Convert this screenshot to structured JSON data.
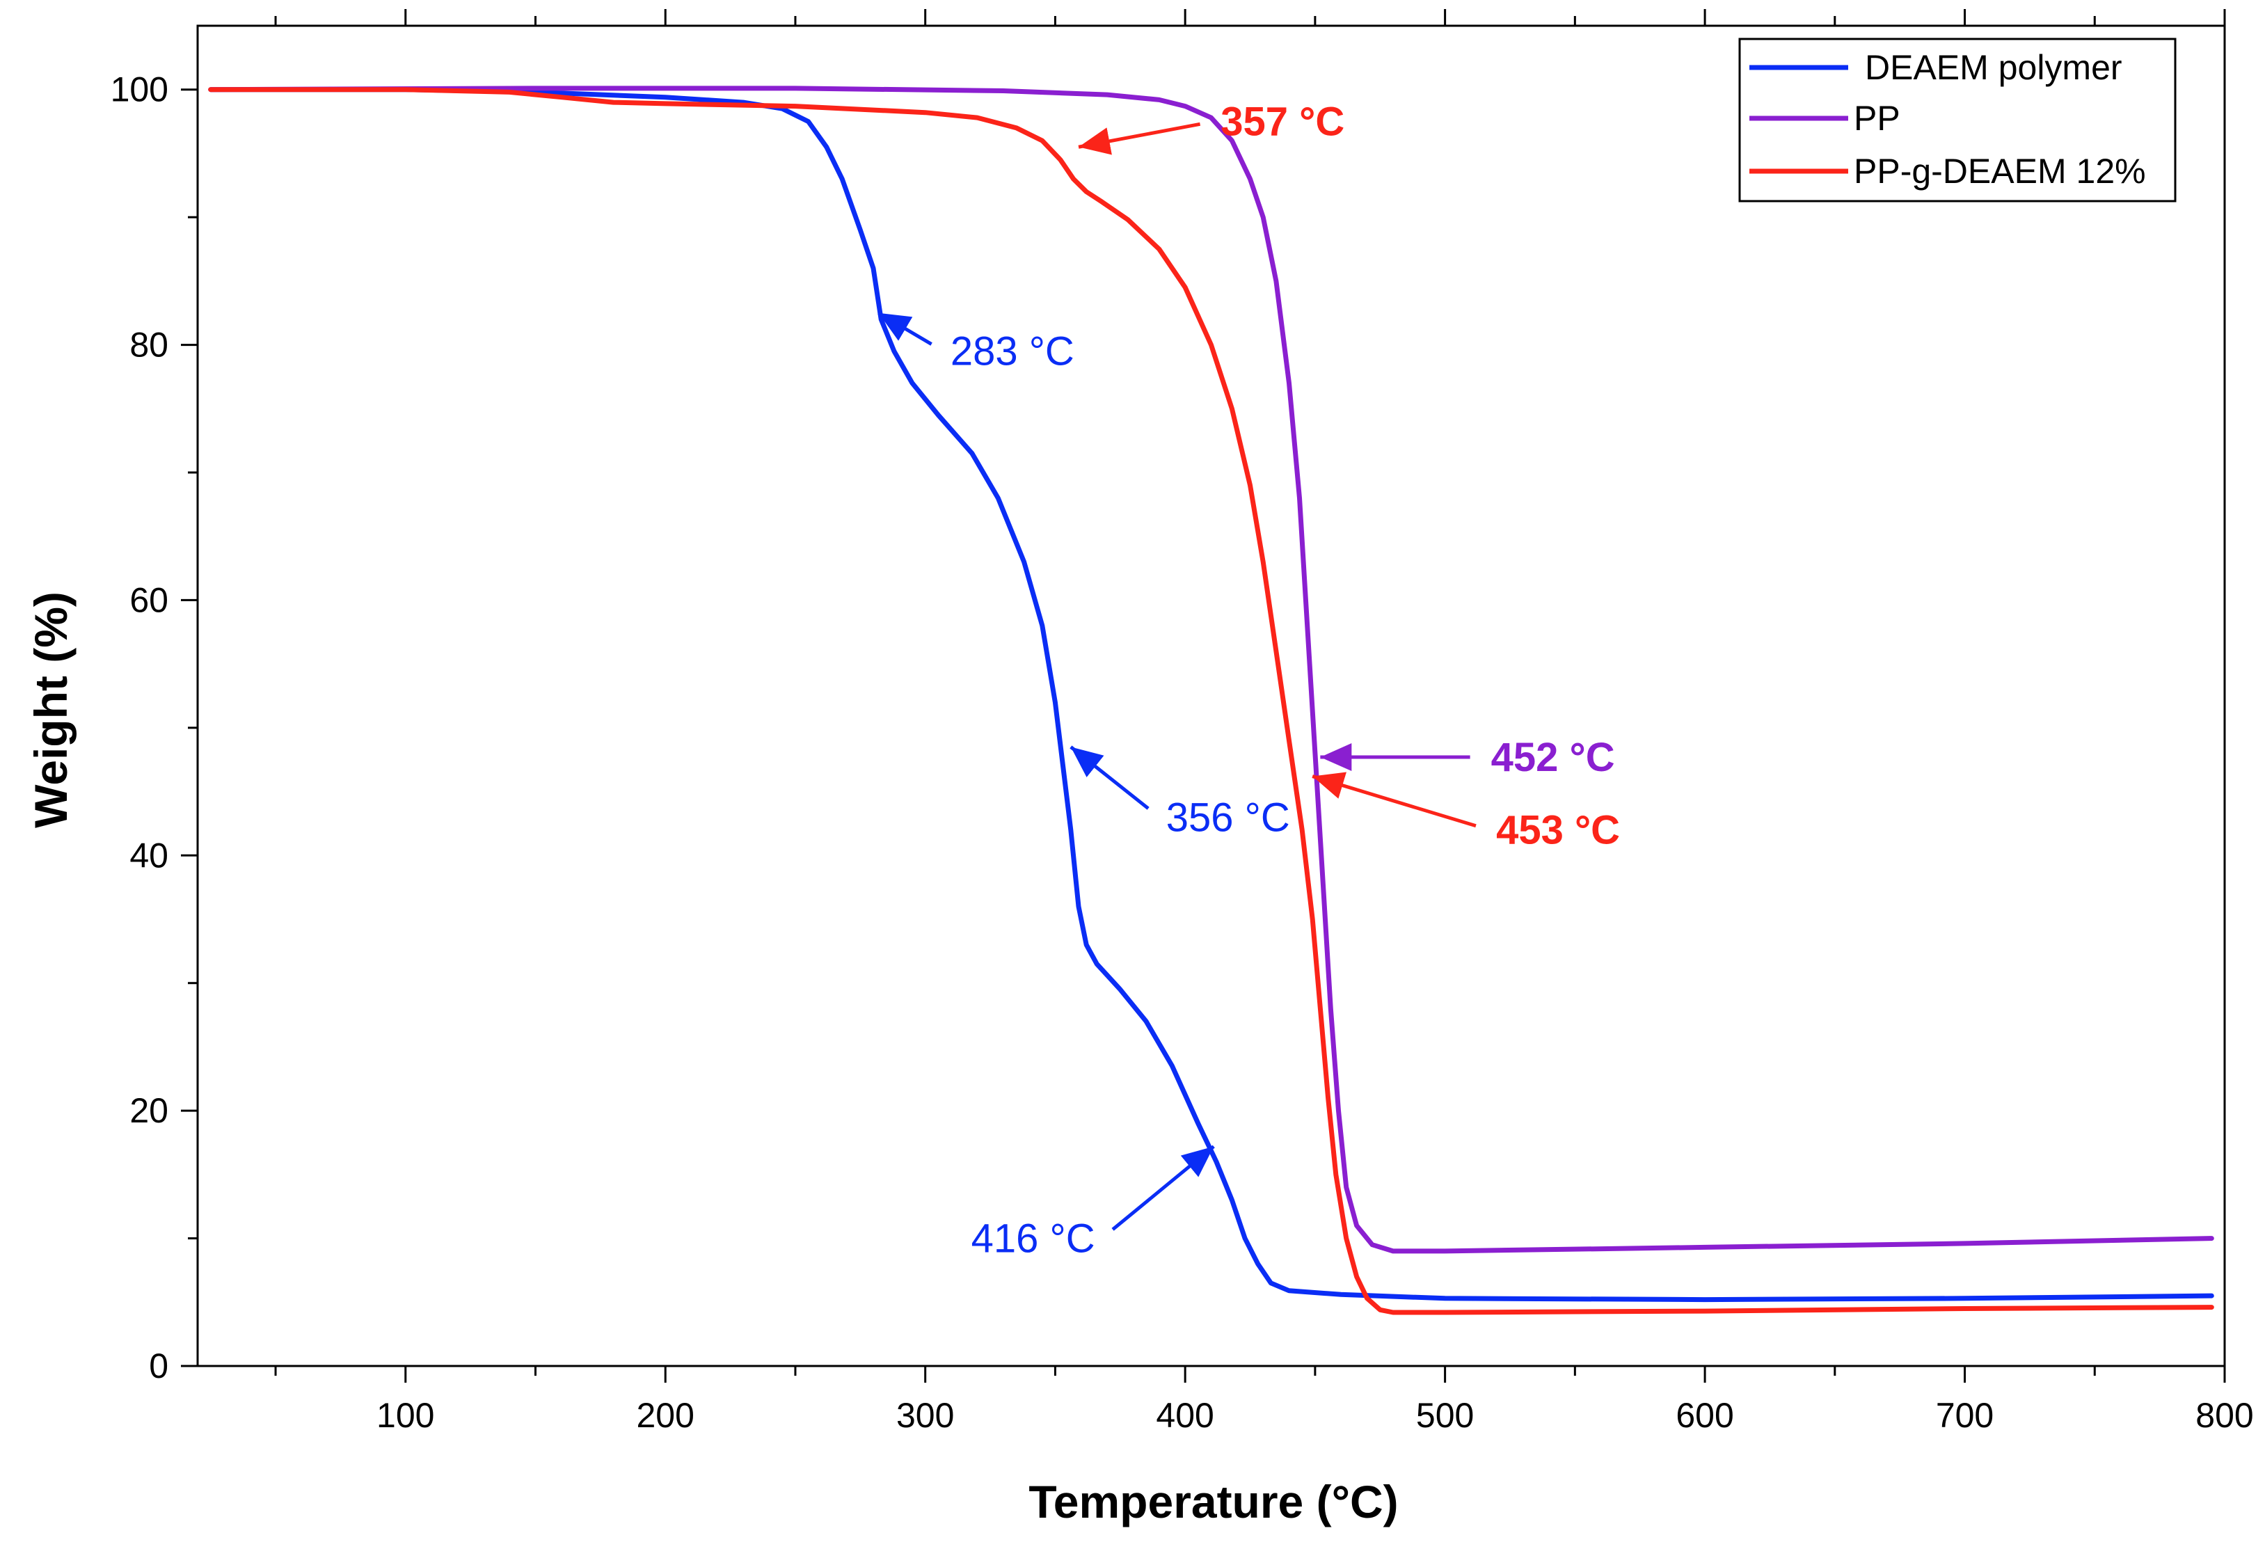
{
  "chart_data": {
    "type": "line",
    "title": "",
    "xlabel": "Temperature (°C)",
    "ylabel": "Weight (%)",
    "xlim": [
      20,
      800
    ],
    "ylim": [
      0,
      105
    ],
    "xticks": [
      100,
      200,
      300,
      400,
      500,
      600,
      700,
      800
    ],
    "yticks": [
      0,
      20,
      40,
      60,
      80,
      100
    ],
    "legend_position": "top-right",
    "series": [
      {
        "name": "DEAEM polymer",
        "color": "#0a2df5",
        "points": [
          [
            25,
            100
          ],
          [
            100,
            100
          ],
          [
            150,
            99.8
          ],
          [
            200,
            99.4
          ],
          [
            230,
            99.0
          ],
          [
            245,
            98.5
          ],
          [
            255,
            97.5
          ],
          [
            262,
            95.5
          ],
          [
            268,
            93
          ],
          [
            275,
            89
          ],
          [
            280,
            86
          ],
          [
            283,
            82
          ],
          [
            288,
            79.5
          ],
          [
            295,
            77
          ],
          [
            305,
            74.5
          ],
          [
            318,
            71.5
          ],
          [
            328,
            68
          ],
          [
            338,
            63
          ],
          [
            345,
            58
          ],
          [
            350,
            52
          ],
          [
            353,
            47
          ],
          [
            356,
            42
          ],
          [
            359,
            36
          ],
          [
            362,
            33
          ],
          [
            366,
            31.5
          ],
          [
            375,
            29.5
          ],
          [
            385,
            27
          ],
          [
            395,
            23.5
          ],
          [
            405,
            19
          ],
          [
            412,
            16
          ],
          [
            418,
            13
          ],
          [
            423,
            10
          ],
          [
            428,
            8
          ],
          [
            433,
            6.5
          ],
          [
            440,
            5.9
          ],
          [
            460,
            5.6
          ],
          [
            500,
            5.3
          ],
          [
            600,
            5.2
          ],
          [
            700,
            5.3
          ],
          [
            795,
            5.5
          ]
        ]
      },
      {
        "name": "PP",
        "color": "#8a1fd0",
        "points": [
          [
            25,
            100
          ],
          [
            150,
            100.1
          ],
          [
            250,
            100.1
          ],
          [
            330,
            99.9
          ],
          [
            370,
            99.6
          ],
          [
            390,
            99.2
          ],
          [
            400,
            98.7
          ],
          [
            410,
            97.8
          ],
          [
            418,
            96
          ],
          [
            425,
            93
          ],
          [
            430,
            90
          ],
          [
            435,
            85
          ],
          [
            440,
            77
          ],
          [
            444,
            68
          ],
          [
            447,
            58
          ],
          [
            450,
            48
          ],
          [
            453,
            38
          ],
          [
            456,
            28
          ],
          [
            459,
            20
          ],
          [
            462,
            14
          ],
          [
            466,
            11
          ],
          [
            472,
            9.5
          ],
          [
            480,
            9.0
          ],
          [
            500,
            9.0
          ],
          [
            600,
            9.3
          ],
          [
            700,
            9.6
          ],
          [
            795,
            10.0
          ]
        ]
      },
      {
        "name": "PP-g-DEAEM 12%",
        "color": "#fb2419",
        "points": [
          [
            25,
            100
          ],
          [
            100,
            100
          ],
          [
            140,
            99.8
          ],
          [
            160,
            99.4
          ],
          [
            180,
            99.0
          ],
          [
            200,
            98.9
          ],
          [
            250,
            98.7
          ],
          [
            300,
            98.2
          ],
          [
            320,
            97.8
          ],
          [
            335,
            97
          ],
          [
            345,
            96
          ],
          [
            352,
            94.5
          ],
          [
            357,
            93
          ],
          [
            362,
            92
          ],
          [
            368,
            91.2
          ],
          [
            378,
            89.8
          ],
          [
            390,
            87.5
          ],
          [
            400,
            84.5
          ],
          [
            410,
            80
          ],
          [
            418,
            75
          ],
          [
            425,
            69
          ],
          [
            430,
            63
          ],
          [
            435,
            56
          ],
          [
            440,
            49
          ],
          [
            445,
            42
          ],
          [
            449,
            35
          ],
          [
            452,
            28
          ],
          [
            455,
            21
          ],
          [
            458,
            15
          ],
          [
            462,
            10
          ],
          [
            466,
            7
          ],
          [
            470,
            5.3
          ],
          [
            475,
            4.4
          ],
          [
            480,
            4.2
          ],
          [
            500,
            4.2
          ],
          [
            600,
            4.3
          ],
          [
            700,
            4.5
          ],
          [
            795,
            4.6
          ]
        ]
      }
    ],
    "annotations": [
      {
        "label": "357 °C",
        "color": "#fb2419",
        "bold": true,
        "text_at": [
          411,
          97.5
        ],
        "arrow_tip": [
          359,
          95.5
        ]
      },
      {
        "label": "283 °C",
        "color": "#0a2df5",
        "bold": false,
        "text_at": [
          307,
          79.5
        ],
        "arrow_tip": [
          282,
          82.5
        ]
      },
      {
        "label": "356 °C",
        "color": "#0a2df5",
        "bold": false,
        "text_at": [
          390,
          43
        ],
        "arrow_tip": [
          356,
          48.5
        ]
      },
      {
        "label": "452 °C",
        "color": "#8a1fd0",
        "bold": true,
        "text_at": [
          515,
          47.7
        ],
        "arrow_tip": [
          452,
          47.7
        ]
      },
      {
        "label": "453 °C",
        "color": "#fb2419",
        "bold": true,
        "text_at": [
          517,
          42
        ],
        "arrow_tip": [
          449,
          46.2
        ]
      },
      {
        "label": "416 °C",
        "color": "#0a2df5",
        "bold": false,
        "text_at": [
          368,
          10
        ],
        "arrow_tip": [
          411,
          17.2
        ]
      }
    ]
  }
}
